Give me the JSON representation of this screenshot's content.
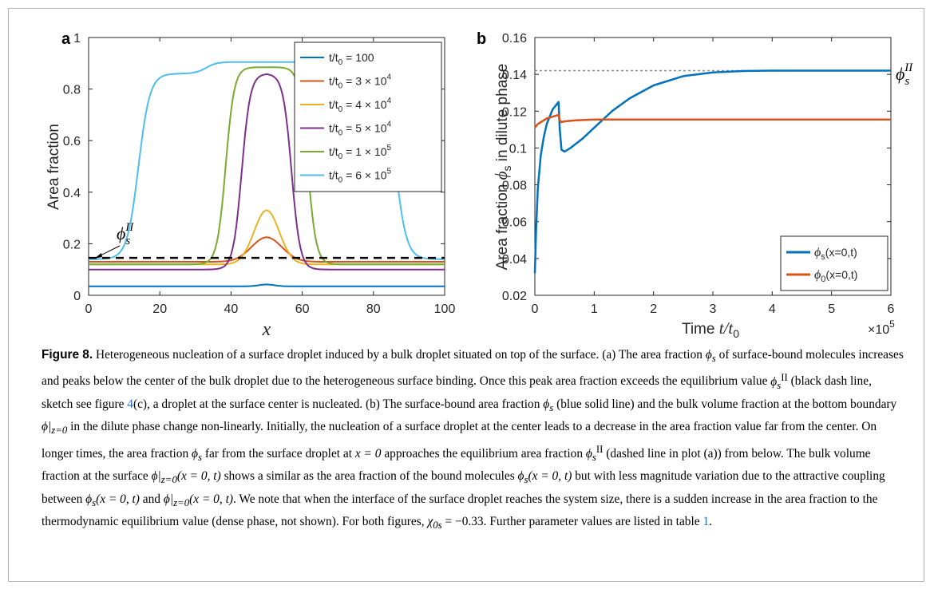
{
  "figure": {
    "chart_data": [
      {
        "type": "line",
        "panel": "a",
        "xlabel": "x",
        "ylabel": "Area fraction",
        "xlim": [
          0,
          100
        ],
        "ylim": [
          0,
          1
        ],
        "x_ticks": [
          "0",
          "20",
          "40",
          "60",
          "80",
          "100"
        ],
        "y_ticks": [
          "0",
          "0.2",
          "0.4",
          "0.6",
          "0.8",
          "1"
        ],
        "legend_position": "top-right",
        "series": [
          {
            "name": "t/t0 = 100",
            "color": "#0072BD",
            "base": 0.035,
            "peak": 0.042,
            "center": 50,
            "half_width": 3.0
          },
          {
            "name": "t/t0 = 3 × 10^4",
            "color": "#D95319",
            "base": 0.13,
            "peak": 0.225,
            "center": 50,
            "half_width": 6.0
          },
          {
            "name": "t/t0 = 4 × 10^4",
            "color": "#EDB120",
            "base": 0.12,
            "peak": 0.33,
            "center": 50,
            "half_width": 5.0
          },
          {
            "name": "t/t0 = 5 × 10^4",
            "color": "#7E2F8E",
            "base": 0.1,
            "peak": 0.86,
            "center": 50,
            "half_width": 7.0
          },
          {
            "name": "t/t0 = 1 × 10^5",
            "color": "#77AC30",
            "base": 0.12,
            "peak": 0.885,
            "center": 50,
            "half_width": 11.5
          },
          {
            "name": "t/t0 = 6 × 10^5",
            "color": "#4DBEEE",
            "base": 0.14,
            "peak": 0.86,
            "peak2": 0.905,
            "center": 50,
            "half_width": 36.0
          }
        ],
        "reference_line": {
          "y": 0.145,
          "style": "dashed",
          "color": "#000000"
        },
        "annotation": "ϕsII"
      },
      {
        "type": "line",
        "panel": "b",
        "xlabel": "Time t/t0",
        "x_multiplier": "×10^5",
        "ylabel": "Area fraction ϕs in dilute phase",
        "xlim": [
          0,
          6
        ],
        "ylim": [
          0.02,
          0.16
        ],
        "x_ticks": [
          "0",
          "1",
          "2",
          "3",
          "4",
          "5",
          "6"
        ],
        "y_ticks": [
          "0.02",
          "0.04",
          "0.06",
          "0.08",
          "0.1",
          "0.12",
          "0.14",
          "0.16"
        ],
        "legend_position": "bottom-right",
        "series": [
          {
            "name": "ϕs(x=0,t)",
            "color": "#0072BD",
            "x": [
              0,
              0.02,
              0.05,
              0.1,
              0.15,
              0.2,
              0.3,
              0.4,
              0.42,
              0.45,
              0.5,
              0.6,
              0.8,
              1.0,
              1.3,
              1.6,
              2.0,
              2.5,
              3.0,
              3.5,
              4.0,
              5.0,
              6.0
            ],
            "y": [
              0.032,
              0.055,
              0.078,
              0.096,
              0.106,
              0.113,
              0.121,
              0.125,
              0.11,
              0.099,
              0.098,
              0.1,
              0.105,
              0.111,
              0.12,
              0.127,
              0.134,
              0.139,
              0.141,
              0.1418,
              0.142,
              0.142,
              0.142
            ]
          },
          {
            "name": "ϕ0(x=0,t)",
            "color": "#D95319",
            "x": [
              0,
              0.05,
              0.1,
              0.2,
              0.3,
              0.4,
              0.42,
              0.45,
              0.5,
              0.7,
              1.0,
              2.0,
              4.0,
              6.0
            ],
            "y": [
              0.111,
              0.113,
              0.114,
              0.116,
              0.117,
              0.118,
              0.115,
              0.114,
              0.1145,
              0.115,
              0.1155,
              0.1155,
              0.1155,
              0.1155
            ]
          }
        ],
        "reference_line": {
          "y": 0.142,
          "style": "dotted",
          "color": "#7f7f7f"
        },
        "annotation": "ϕsII"
      }
    ]
  },
  "panel_a": {
    "letter": "a",
    "ylabel": "Area fraction",
    "xlabel": "x",
    "annotation_main": "ϕ",
    "annotation_sub": "s",
    "annotation_sup": "II",
    "legend": [
      "t/t0 = 100",
      "t/t0 = 3 × 10^4",
      "t/t0 = 4 × 10^4",
      "t/t0 = 5 × 10^4",
      "t/t0 = 1 × 10^5",
      "t/t0 = 6 × 10^5"
    ]
  },
  "panel_b": {
    "letter": "b",
    "ylabel_pre": "Area fraction ",
    "ylabel_phi": "ϕ",
    "ylabel_sub": "s",
    "ylabel_post": " in dilute phase",
    "xlabel_pre": "Time ",
    "xlabel_math": "t/t",
    "xlabel_sub": "0",
    "multiplier_base": "×10",
    "multiplier_exp": "5",
    "annotation_main": "ϕ",
    "annotation_sub": "s",
    "annotation_sup": "II",
    "legend": [
      {
        "main": "ϕ",
        "sub": "s",
        "rest": "(x=0,t)"
      },
      {
        "main": "ϕ",
        "sub": "0",
        "rest": "(x=0,t)"
      }
    ]
  },
  "caption": {
    "label": "Figure 8.",
    "s1": " Heterogeneous nucleation of a surface droplet induced by a bulk droplet situated on top of the surface. (a) The area fraction ",
    "s2": " of surface-bound molecules increases and peaks below the center of the bulk droplet due to the heterogeneous surface binding. Once this peak area fraction exceeds the equilibrium value ",
    "s3": " (black dash line, sketch see figure ",
    "ref1": "4",
    "s4": "(c), a droplet at the surface center is nucleated. (b) The surface-bound area fraction ",
    "s5": " (blue solid line) and the bulk volume fraction at the bottom boundary ",
    "s6": " in the dilute phase change non-linearly. Initially, the nucleation of a surface droplet at the center leads to a decrease in the area fraction value far from the center. On longer times, the area fraction ",
    "s7": " far from the surface droplet at ",
    "s8": " approaches the equilibrium area fraction ",
    "s9": " (dashed line in plot (a)) from below. The bulk volume fraction at the surface ",
    "s10": " shows a similar as the area fraction of the bound molecules ",
    "s11": " but with less magnitude variation due to the attractive coupling between ",
    "s12": " and ",
    "s13": ". We note that when the interface of the surface droplet reaches the system size, there is a sudden increase in the area fraction to the thermodynamic equilibrium value (dense phase, not shown). For both figures, ",
    "s14": ". Further parameter values are listed in table ",
    "ref2": "1",
    "s15": ".",
    "m_phis": "ϕ",
    "m_s": "s",
    "m_II": "II",
    "m_phi_z0": "ϕ|",
    "m_z0": "z=0",
    "m_x0": "x = 0",
    "m_arg": "(x = 0, t)",
    "m_chi": "χ",
    "m_chi_sub": "0s",
    "m_chi_val": " = −0.33"
  }
}
